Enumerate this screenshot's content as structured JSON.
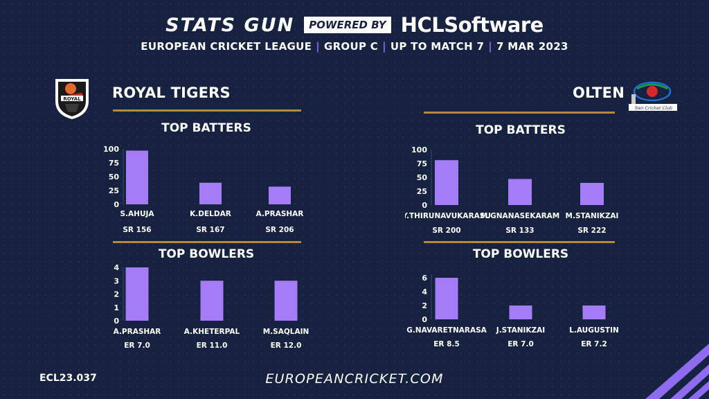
{
  "header": {
    "brand": "STATS GUN",
    "powered_by": "POWERED BY",
    "sponsor": "HCLSoftware",
    "subtitle_parts": [
      "EUROPEAN CRICKET LEAGUE",
      "GROUP  C",
      "UP TO MATCH  7",
      "7 MAR 2023"
    ]
  },
  "teams": {
    "left": {
      "name": "ROYAL TIGERS",
      "logo_icon": "royal-tigers-logo",
      "logo_text": "ROYAL"
    },
    "right": {
      "name": "OLTEN",
      "logo_icon": "olten-cricket-club-logo",
      "logo_text": "lten Cricket Club"
    }
  },
  "sections": {
    "batters_title": "TOP BATTERS",
    "bowlers_title": "TOP BOWLERS"
  },
  "colors": {
    "background": "#16223f",
    "bar": "#a47cf7",
    "accent_line": "#b58a3c",
    "separator": "#8f6bf0"
  },
  "chart_data": [
    {
      "id": "royal-batters",
      "type": "bar",
      "title": "TOP BATTERS",
      "categories": [
        "S.AHUJA",
        "K.DELDAR",
        "A.PRASHAR"
      ],
      "values": [
        97,
        39,
        32
      ],
      "metrics": [
        "SR 156",
        "SR 167",
        "SR 206"
      ],
      "yticks": [
        0,
        25,
        50,
        75,
        100
      ],
      "ylim": [
        0,
        100
      ],
      "grid": false
    },
    {
      "id": "olten-batters",
      "type": "bar",
      "title": "TOP BATTERS",
      "categories": [
        "Y.THIRUNAVUKARASU",
        "M.GNANASEKARAM",
        "M.STANIKZAI"
      ],
      "values": [
        81,
        47,
        40
      ],
      "metrics": [
        "SR 200",
        "SR 133",
        "SR 222"
      ],
      "yticks": [
        0,
        25,
        50,
        75,
        100
      ],
      "ylim": [
        0,
        100
      ],
      "grid": false
    },
    {
      "id": "royal-bowlers",
      "type": "bar",
      "title": "TOP BOWLERS",
      "categories": [
        "A.PRASHAR",
        "A.KHETERPAL",
        "M.SAQLAIN"
      ],
      "values": [
        4,
        3,
        3
      ],
      "metrics": [
        "ER 7.0",
        "ER 11.0",
        "ER 12.0"
      ],
      "yticks": [
        0,
        1,
        2,
        3,
        4
      ],
      "ylim": [
        0,
        4
      ],
      "grid": false
    },
    {
      "id": "olten-bowlers",
      "type": "bar",
      "title": "TOP BOWLERS",
      "categories": [
        "G.NAVARETNARASA",
        "J.STANIKZAI",
        "L.AUGUSTIN"
      ],
      "values": [
        6,
        2,
        2
      ],
      "metrics": [
        "ER 8.5",
        "ER 7.0",
        "ER 7.2"
      ],
      "yticks": [
        0,
        2,
        4,
        6
      ],
      "ylim": [
        0,
        6.5
      ],
      "grid": false
    }
  ],
  "footer": {
    "code": "ECL23.037",
    "site": "EUROPEANCRICKET.COM"
  }
}
